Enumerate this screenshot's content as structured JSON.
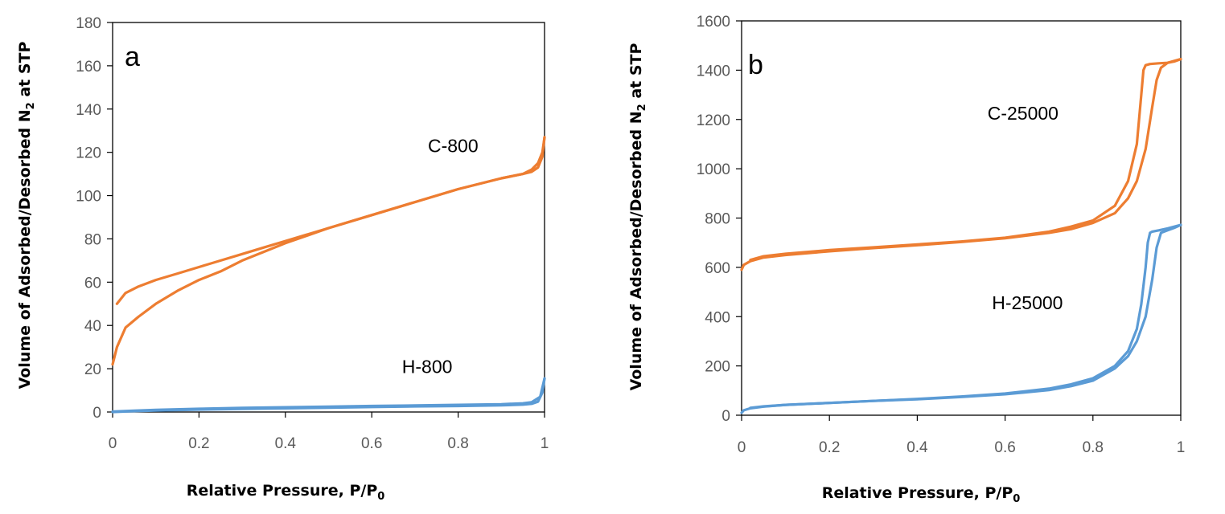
{
  "chart_data": [
    {
      "type": "line",
      "panel_label": "a",
      "xlabel_prefix": "Relative Pressure,  P/P",
      "xlabel_subscript": "0",
      "ylabel_prefix": "Volume of Adsorbed/Desorbed N",
      "ylabel_subscript": "2",
      "ylabel_suffix": " at STP",
      "xlim": [
        0,
        1
      ],
      "ylim": [
        0,
        180
      ],
      "xticks": [
        0,
        0.2,
        0.4,
        0.6,
        0.8,
        1
      ],
      "xtick_labels": [
        "0",
        "0.2",
        "0.4",
        "0.6",
        "0.8",
        "1"
      ],
      "yticks": [
        0,
        20,
        40,
        60,
        80,
        100,
        120,
        140,
        160,
        180
      ],
      "ytick_labels": [
        "0",
        "20",
        "40",
        "60",
        "80",
        "100",
        "120",
        "140",
        "160",
        "180"
      ],
      "series": [
        {
          "name": "C-800",
          "color": "#ED7D31",
          "label_at": [
            0.73,
            120
          ],
          "adsorption": {
            "x": [
              0.0,
              0.01,
              0.03,
              0.06,
              0.1,
              0.15,
              0.2,
              0.25,
              0.3,
              0.35,
              0.4,
              0.5,
              0.6,
              0.7,
              0.8,
              0.9,
              0.95,
              0.97,
              0.985,
              0.995,
              1.0
            ],
            "y": [
              22,
              30,
              39,
              44,
              50,
              56,
              61,
              65,
              70,
              74,
              78,
              85,
              91,
              97,
              103,
              108,
              110,
              111,
              113,
              118,
              127
            ]
          },
          "desorption": {
            "x": [
              1.0,
              0.995,
              0.985,
              0.97,
              0.95,
              0.9,
              0.8,
              0.7,
              0.6,
              0.5,
              0.4,
              0.35,
              0.3,
              0.25,
              0.2,
              0.15,
              0.1,
              0.06,
              0.03,
              0.01
            ],
            "y": [
              127,
              120,
              115,
              112,
              110,
              108,
              103,
              97,
              91,
              85,
              79,
              76,
              73,
              70,
              67,
              64,
              61,
              58,
              55,
              50
            ]
          }
        },
        {
          "name": "H-800",
          "color": "#5B9BD5",
          "label_at": [
            0.67,
            18
          ],
          "adsorption": {
            "x": [
              0.0,
              0.05,
              0.1,
              0.2,
              0.3,
              0.4,
              0.5,
              0.6,
              0.7,
              0.8,
              0.9,
              0.95,
              0.97,
              0.985,
              0.995,
              1.0
            ],
            "y": [
              0,
              0.4,
              0.7,
              1.1,
              1.4,
              1.7,
              2.0,
              2.3,
              2.6,
              2.8,
              3.1,
              3.4,
              3.8,
              4.8,
              9,
              15.5
            ]
          },
          "desorption": {
            "x": [
              1.0,
              0.99,
              0.97,
              0.95,
              0.9,
              0.8,
              0.7,
              0.6,
              0.5,
              0.4,
              0.3,
              0.2,
              0.1,
              0.05,
              0.0
            ],
            "y": [
              15.5,
              7,
              4.5,
              4.0,
              3.6,
              3.3,
              3.0,
              2.8,
              2.5,
              2.2,
              1.9,
              1.5,
              1.0,
              0.6,
              0.2
            ]
          }
        }
      ]
    },
    {
      "type": "line",
      "panel_label": "b",
      "xlabel_prefix": "Relative Pressure,  P/P",
      "xlabel_subscript": "0",
      "ylabel_prefix": "Volume of Adsorbed/Desorbed N",
      "ylabel_subscript": "2",
      "ylabel_suffix": " at STP",
      "xlim": [
        0,
        1
      ],
      "ylim": [
        0,
        1600
      ],
      "xticks": [
        0,
        0.2,
        0.4,
        0.6,
        0.8,
        1
      ],
      "xtick_labels": [
        "0",
        "0.2",
        "0.4",
        "0.6",
        "0.8",
        "1"
      ],
      "yticks": [
        0,
        200,
        400,
        600,
        800,
        1000,
        1200,
        1400,
        1600
      ],
      "ytick_labels": [
        "0",
        "200",
        "400",
        "600",
        "800",
        "1000",
        "1200",
        "1400",
        "1600"
      ],
      "series": [
        {
          "name": "C-25000",
          "color": "#ED7D31",
          "label_at": [
            0.56,
            1200
          ],
          "adsorption": {
            "x": [
              0.0,
              0.005,
              0.02,
              0.05,
              0.1,
              0.2,
              0.3,
              0.4,
              0.5,
              0.6,
              0.7,
              0.75,
              0.8,
              0.85,
              0.88,
              0.9,
              0.92,
              0.935,
              0.945,
              0.955,
              0.97,
              0.985,
              1.0
            ],
            "y": [
              590,
              610,
              625,
              640,
              650,
              665,
              678,
              690,
              703,
              718,
              740,
              755,
              780,
              820,
              880,
              950,
              1080,
              1250,
              1360,
              1410,
              1430,
              1435,
              1445
            ]
          },
          "desorption": {
            "x": [
              1.0,
              0.97,
              0.95,
              0.93,
              0.92,
              0.915,
              0.91,
              0.9,
              0.88,
              0.85,
              0.8,
              0.75,
              0.7,
              0.6,
              0.5,
              0.4,
              0.3,
              0.2,
              0.1,
              0.05,
              0.02
            ],
            "y": [
              1445,
              1430,
              1428,
              1425,
              1420,
              1400,
              1300,
              1100,
              950,
              850,
              790,
              765,
              745,
              720,
              705,
              693,
              681,
              670,
              655,
              645,
              630
            ]
          }
        },
        {
          "name": "H-25000",
          "color": "#5B9BD5",
          "label_at": [
            0.57,
            430
          ],
          "adsorption": {
            "x": [
              0.0,
              0.005,
              0.02,
              0.05,
              0.1,
              0.2,
              0.3,
              0.4,
              0.5,
              0.6,
              0.7,
              0.75,
              0.8,
              0.85,
              0.88,
              0.9,
              0.92,
              0.935,
              0.945,
              0.955,
              0.97,
              0.985,
              1.0
            ],
            "y": [
              10,
              20,
              28,
              35,
              42,
              50,
              58,
              65,
              74,
              85,
              102,
              118,
              140,
              190,
              240,
              300,
              400,
              550,
              680,
              740,
              750,
              760,
              772
            ]
          },
          "desorption": {
            "x": [
              1.0,
              0.97,
              0.95,
              0.935,
              0.93,
              0.925,
              0.92,
              0.91,
              0.9,
              0.88,
              0.85,
              0.8,
              0.75,
              0.7,
              0.6,
              0.5,
              0.4,
              0.3,
              0.2,
              0.1,
              0.05,
              0.02
            ],
            "y": [
              772,
              758,
              750,
              745,
              740,
              700,
              600,
              450,
              350,
              260,
              200,
              150,
              125,
              108,
              88,
              76,
              66,
              58,
              50,
              42,
              36,
              30
            ]
          }
        }
      ]
    }
  ]
}
